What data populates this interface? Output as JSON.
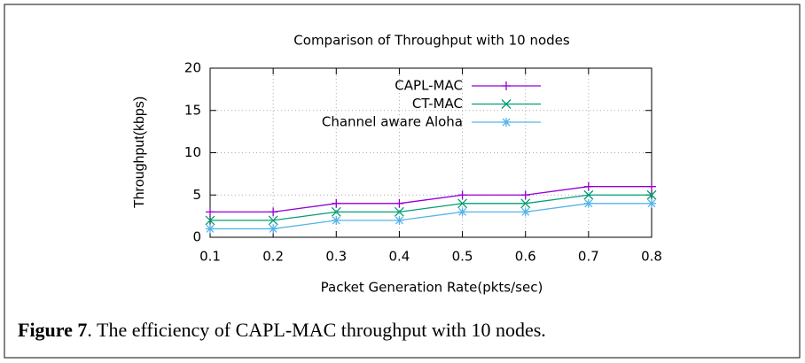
{
  "chart_data": {
    "type": "line",
    "title": "Comparison of Throughput with 10 nodes",
    "x_label": "Packet Generation Rate(pkts/sec)",
    "y_label": "Throughput(kbps)",
    "x": [
      0.1,
      0.2,
      0.3,
      0.4,
      0.5,
      0.6,
      0.7,
      0.8
    ],
    "xlim": [
      0.1,
      0.8
    ],
    "xticks": [
      0.1,
      0.2,
      0.3,
      0.4,
      0.5,
      0.6,
      0.7,
      0.8
    ],
    "ylim": [
      0,
      20
    ],
    "yticks": [
      0,
      5,
      10,
      15,
      20
    ],
    "grid": true,
    "legend": "top",
    "series": [
      {
        "name": "CAPL-MAC",
        "color": "#9400d3",
        "marker": "plus",
        "values": [
          3,
          3,
          4,
          4,
          5,
          5,
          6,
          6
        ]
      },
      {
        "name": "CT-MAC",
        "color": "#009e73",
        "marker": "cross",
        "values": [
          2,
          2,
          3,
          3,
          4,
          4,
          5,
          5
        ]
      },
      {
        "name": "Channel aware Aloha",
        "color": "#56b4e9",
        "marker": "star",
        "values": [
          1,
          1,
          2,
          2,
          3,
          3,
          4,
          4
        ]
      }
    ]
  },
  "caption": {
    "label": "Figure 7",
    "text": ". The efficiency of CAPL-MAC throughput with 10 nodes."
  }
}
